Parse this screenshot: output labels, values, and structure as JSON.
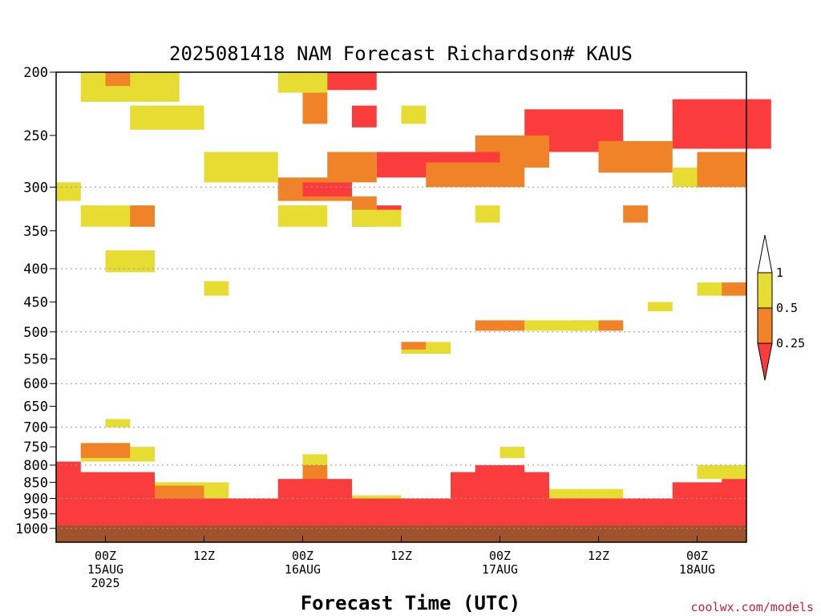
{
  "chart_data": {
    "type": "heatmap",
    "title": "2025081418 NAM Forecast Richardson# KAUS",
    "xlabel": "Forecast Time (UTC)",
    "ylabel": "",
    "credit": "coolwx.com/models",
    "y_scale": "log",
    "y_inverted": true,
    "ylim": [
      200,
      1050
    ],
    "y_ticks": [
      200,
      250,
      300,
      350,
      400,
      450,
      500,
      550,
      600,
      650,
      700,
      750,
      800,
      850,
      900,
      950,
      1000
    ],
    "y_gridlines": [
      300,
      400,
      500,
      600,
      700,
      800,
      900,
      1000
    ],
    "xlim": [
      "2025-08-14 18Z",
      "2025-08-18 06Z"
    ],
    "x_ticks": [
      {
        "time": "2025-08-15 00Z",
        "label": "00Z",
        "day": "15AUG",
        "year": "2025"
      },
      {
        "time": "2025-08-15 12Z",
        "label": "12Z",
        "day": "",
        "year": ""
      },
      {
        "time": "2025-08-16 00Z",
        "label": "00Z",
        "day": "16AUG",
        "year": ""
      },
      {
        "time": "2025-08-16 12Z",
        "label": "12Z",
        "day": "",
        "year": ""
      },
      {
        "time": "2025-08-17 00Z",
        "label": "00Z",
        "day": "17AUG",
        "year": ""
      },
      {
        "time": "2025-08-17 12Z",
        "label": "12Z",
        "day": "",
        "year": ""
      },
      {
        "time": "2025-08-18 00Z",
        "label": "00Z",
        "day": "18AUG",
        "year": ""
      }
    ],
    "legend": {
      "placement": "right",
      "bins": [
        {
          "range": "> 1",
          "color": "#ffffff"
        },
        {
          "range": "0.5 - 1",
          "color": "#e6dc32"
        },
        {
          "range": "0.25 - 0.5",
          "color": "#f08228"
        },
        {
          "range": "< 0.25",
          "color": "#fa3c3c"
        }
      ],
      "labels": [
        "1",
        "0.5",
        "0.25"
      ]
    },
    "ground_color": "#a0522d",
    "ground_from_hpa": 990,
    "regions": [
      {
        "c": "y",
        "t0": "08-14 21Z",
        "t1": "08-15 09Z",
        "p0": 200,
        "p1": 222
      },
      {
        "c": "o",
        "t0": "08-15 00Z",
        "t1": "08-15 03Z",
        "p0": 200,
        "p1": 210
      },
      {
        "c": "y",
        "t0": "08-15 03Z",
        "t1": "08-15 12Z",
        "p0": 225,
        "p1": 245
      },
      {
        "c": "y",
        "t0": "08-15 21Z",
        "t1": "08-16 03Z",
        "p0": 200,
        "p1": 215
      },
      {
        "c": "o",
        "t0": "08-16 00Z",
        "t1": "08-16 03Z",
        "p0": 215,
        "p1": 240
      },
      {
        "c": "r",
        "t0": "08-16 03Z",
        "t1": "08-16 09Z",
        "p0": 200,
        "p1": 213
      },
      {
        "c": "r",
        "t0": "08-16 06Z",
        "t1": "08-16 09Z",
        "p0": 225,
        "p1": 243
      },
      {
        "c": "y",
        "t0": "08-16 12Z",
        "t1": "08-16 15Z",
        "p0": 225,
        "p1": 240
      },
      {
        "c": "r",
        "t0": "08-17 21Z",
        "t1": "08-18 09Z",
        "p0": 220,
        "p1": 262
      },
      {
        "c": "r",
        "t0": "08-17 03Z",
        "t1": "08-17 15Z",
        "p0": 228,
        "p1": 265
      },
      {
        "c": "o",
        "t0": "08-16 21Z",
        "t1": "08-17 06Z",
        "p0": 250,
        "p1": 280
      },
      {
        "c": "r",
        "t0": "08-16 09Z",
        "t1": "08-17 00Z",
        "p0": 265,
        "p1": 290
      },
      {
        "c": "o",
        "t0": "08-16 15Z",
        "t1": "08-17 03Z",
        "p0": 275,
        "p1": 300
      },
      {
        "c": "r",
        "t0": "08-15 12Z",
        "t1": "08-15 18Z",
        "p0": 270,
        "p1": 290
      },
      {
        "c": "y",
        "t0": "08-15 12Z",
        "t1": "08-15 21Z",
        "p0": 265,
        "p1": 295
      },
      {
        "c": "o",
        "t0": "08-15 21Z",
        "t1": "08-16 06Z",
        "p0": 290,
        "p1": 315
      },
      {
        "c": "r",
        "t0": "08-16 00Z",
        "t1": "08-16 06Z",
        "p0": 295,
        "p1": 310
      },
      {
        "c": "o",
        "t0": "08-16 03Z",
        "t1": "08-16 09Z",
        "p0": 265,
        "p1": 295
      },
      {
        "c": "o",
        "t0": "08-17 12Z",
        "t1": "08-17 21Z",
        "p0": 255,
        "p1": 285
      },
      {
        "c": "y",
        "t0": "08-17 21Z",
        "t1": "08-18 06Z",
        "p0": 280,
        "p1": 300
      },
      {
        "c": "o",
        "t0": "08-18 00Z",
        "t1": "08-18 06Z",
        "p0": 265,
        "p1": 300
      },
      {
        "c": "y",
        "t0": "08-14 18Z",
        "t1": "08-14 21Z",
        "p0": 295,
        "p1": 315
      },
      {
        "c": "y",
        "t0": "08-14 21Z",
        "t1": "08-15 06Z",
        "p0": 320,
        "p1": 345
      },
      {
        "c": "o",
        "t0": "08-15 03Z",
        "t1": "08-15 06Z",
        "p0": 320,
        "p1": 345
      },
      {
        "c": "y",
        "t0": "08-15 21Z",
        "t1": "08-16 03Z",
        "p0": 320,
        "p1": 345
      },
      {
        "c": "o",
        "t0": "08-16 06Z",
        "t1": "08-16 09Z",
        "p0": 310,
        "p1": 345
      },
      {
        "c": "r",
        "t0": "08-16 09Z",
        "t1": "08-16 12Z",
        "p0": 320,
        "p1": 340
      },
      {
        "c": "y",
        "t0": "08-16 06Z",
        "t1": "08-16 12Z",
        "p0": 325,
        "p1": 345
      },
      {
        "c": "y",
        "t0": "08-16 21Z",
        "t1": "08-17 00Z",
        "p0": 320,
        "p1": 340
      },
      {
        "c": "o",
        "t0": "08-17 15Z",
        "t1": "08-17 18Z",
        "p0": 320,
        "p1": 340
      },
      {
        "c": "o",
        "t0": "08-15 03Z",
        "t1": "08-15 06Z",
        "p0": 380,
        "p1": 398
      },
      {
        "c": "y",
        "t0": "08-15 00Z",
        "t1": "08-15 06Z",
        "p0": 375,
        "p1": 405
      },
      {
        "c": "y",
        "t0": "08-15 12Z",
        "t1": "08-15 15Z",
        "p0": 418,
        "p1": 440
      },
      {
        "c": "y",
        "t0": "08-18 00Z",
        "t1": "08-18 06Z",
        "p0": 420,
        "p1": 440
      },
      {
        "c": "o",
        "t0": "08-18 03Z",
        "t1": "08-18 06Z",
        "p0": 420,
        "p1": 440
      },
      {
        "c": "y",
        "t0": "08-17 18Z",
        "t1": "08-17 21Z",
        "p0": 450,
        "p1": 465
      },
      {
        "c": "o",
        "t0": "08-16 21Z",
        "t1": "08-17 03Z",
        "p0": 480,
        "p1": 498
      },
      {
        "c": "y",
        "t0": "08-17 03Z",
        "t1": "08-17 06Z",
        "p0": 480,
        "p1": 498
      },
      {
        "c": "o",
        "t0": "08-17 09Z",
        "t1": "08-17 15Z",
        "p0": 480,
        "p1": 498
      },
      {
        "c": "y",
        "t0": "08-17 06Z",
        "t1": "08-17 12Z",
        "p0": 480,
        "p1": 498
      },
      {
        "c": "y",
        "t0": "08-16 12Z",
        "t1": "08-16 18Z",
        "p0": 518,
        "p1": 540
      },
      {
        "c": "o",
        "t0": "08-16 12Z",
        "t1": "08-16 15Z",
        "p0": 518,
        "p1": 532
      },
      {
        "c": "y",
        "t0": "08-15 00Z",
        "t1": "08-15 03Z",
        "p0": 680,
        "p1": 700
      },
      {
        "c": "y",
        "t0": "08-14 21Z",
        "t1": "08-15 06Z",
        "p0": 750,
        "p1": 790
      },
      {
        "c": "o",
        "t0": "08-14 21Z",
        "t1": "08-15 03Z",
        "p0": 740,
        "p1": 780
      },
      {
        "c": "r",
        "t0": "08-14 18Z",
        "t1": "08-14 21Z",
        "p0": 790,
        "p1": 830
      },
      {
        "c": "y",
        "t0": "08-16 00Z",
        "t1": "08-16 03Z",
        "p0": 770,
        "p1": 800
      },
      {
        "c": "y",
        "t0": "08-17 00Z",
        "t1": "08-17 03Z",
        "p0": 750,
        "p1": 780
      },
      {
        "c": "r",
        "t0": "08-16 21Z",
        "t1": "08-17 03Z",
        "p0": 800,
        "p1": 860
      },
      {
        "c": "o",
        "t0": "08-16 00Z",
        "t1": "08-16 03Z",
        "p0": 800,
        "p1": 860
      },
      {
        "c": "y",
        "t0": "08-15 06Z",
        "t1": "08-15 15Z",
        "p0": 850,
        "p1": 900
      },
      {
        "c": "o",
        "t0": "08-15 03Z",
        "t1": "08-15 12Z",
        "p0": 860,
        "p1": 900
      },
      {
        "c": "r",
        "t0": "08-14 18Z",
        "t1": "08-15 06Z",
        "p0": 820,
        "p1": 900
      },
      {
        "c": "r",
        "t0": "08-15 21Z",
        "t1": "08-16 06Z",
        "p0": 840,
        "p1": 900
      },
      {
        "c": "r",
        "t0": "08-16 18Z",
        "t1": "08-17 06Z",
        "p0": 820,
        "p1": 900
      },
      {
        "c": "y",
        "t0": "08-17 06Z",
        "t1": "08-17 15Z",
        "p0": 870,
        "p1": 920
      },
      {
        "c": "r",
        "t0": "08-17 21Z",
        "t1": "08-18 06Z",
        "p0": 850,
        "p1": 910
      },
      {
        "c": "y",
        "t0": "08-18 00Z",
        "t1": "08-18 06Z",
        "p0": 800,
        "p1": 840
      },
      {
        "c": "r",
        "t0": "08-18 03Z",
        "t1": "08-18 06Z",
        "p0": 840,
        "p1": 880
      },
      {
        "c": "y",
        "t0": "08-16 06Z",
        "t1": "08-16 12Z",
        "p0": 890,
        "p1": 920
      },
      {
        "c": "r",
        "t0": "08-14 18Z",
        "t1": "08-18 06Z",
        "p0": 900,
        "p1": 995
      }
    ]
  }
}
